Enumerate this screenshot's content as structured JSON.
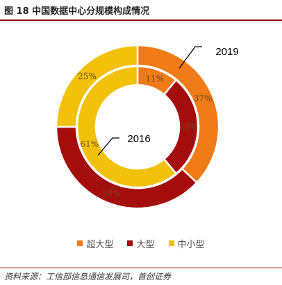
{
  "header": {
    "title": "图 18 中国数据中心分规模构成情况"
  },
  "footer": {
    "source": "资料来源：工信部信息通信发展司，首创证券"
  },
  "colors": {
    "super_large": "#f07b17",
    "large": "#a50d0d",
    "small_medium": "#f2c20a",
    "rule": "#8b0000"
  },
  "chart_data": {
    "type": "pie",
    "variant": "nested-donut",
    "categories": [
      "超大型",
      "大型",
      "中小型"
    ],
    "series": [
      {
        "name": "2019",
        "ring": "outer",
        "values": [
          37,
          38,
          25
        ],
        "labels": [
          "37%",
          "38%",
          "25%"
        ]
      },
      {
        "name": "2016",
        "ring": "inner",
        "values": [
          11,
          28,
          61
        ],
        "labels": [
          "11%",
          "28%",
          "61%"
        ]
      }
    ],
    "legend_position": "bottom"
  }
}
